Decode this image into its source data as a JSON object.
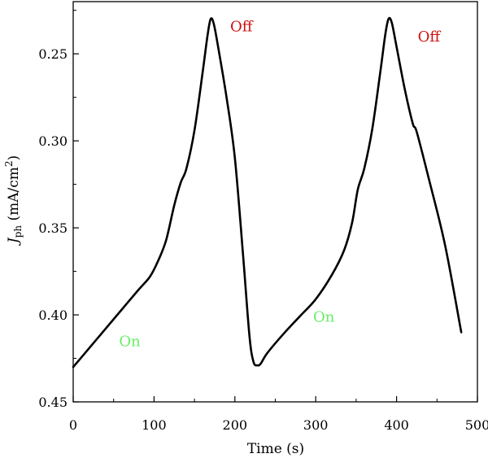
{
  "chart_data": {
    "type": "line",
    "title": "",
    "xlabel": "Time (s)",
    "ylabel": {
      "italic": "J",
      "sub": "ph",
      "pre": " (mA/cm",
      "sup": "2",
      "post": ")"
    },
    "xlim": [
      0,
      500
    ],
    "ylim": [
      0.45,
      0.22
    ],
    "y_inverted": true,
    "grid": false,
    "x_ticks": [
      0,
      100,
      200,
      300,
      400,
      500
    ],
    "x_tick_labels": [
      "0",
      "100",
      "200",
      "300",
      "400",
      "500"
    ],
    "y_ticks": [
      0.25,
      0.3,
      0.35,
      0.4,
      0.45
    ],
    "y_tick_labels": [
      "0.25",
      "0.30",
      "0.35",
      "0.40",
      "0.45"
    ],
    "series": [
      {
        "color": "#000000",
        "x": [
          0,
          20,
          40,
          60,
          80,
          95,
          105,
          115,
          125,
          133,
          140,
          150,
          160,
          166,
          170,
          174,
          180,
          190,
          200,
          210,
          218,
          223,
          228,
          232,
          240,
          260,
          280,
          300,
          320,
          335,
          345,
          352,
          360,
          370,
          380,
          386,
          390,
          394,
          400,
          410,
          420,
          425,
          440,
          460,
          480
        ],
        "y": [
          0.43,
          0.419,
          0.408,
          0.397,
          0.386,
          0.378,
          0.369,
          0.357,
          0.337,
          0.324,
          0.316,
          0.294,
          0.261,
          0.24,
          0.23,
          0.233,
          0.248,
          0.276,
          0.31,
          0.365,
          0.412,
          0.427,
          0.429,
          0.428,
          0.422,
          0.411,
          0.401,
          0.391,
          0.377,
          0.363,
          0.347,
          0.328,
          0.316,
          0.293,
          0.26,
          0.239,
          0.23,
          0.232,
          0.246,
          0.27,
          0.29,
          0.295,
          0.322,
          0.36,
          0.41
        ]
      }
    ],
    "annotations": [
      {
        "text": "On",
        "x": 70,
        "y": 0.418,
        "color": "#66ee66"
      },
      {
        "text": "Off",
        "x": 208,
        "y": 0.237,
        "color": "#cc1111"
      },
      {
        "text": "On",
        "x": 310,
        "y": 0.404,
        "color": "#66ee66"
      },
      {
        "text": "Off",
        "x": 440,
        "y": 0.243,
        "color": "#cc1111"
      }
    ]
  }
}
